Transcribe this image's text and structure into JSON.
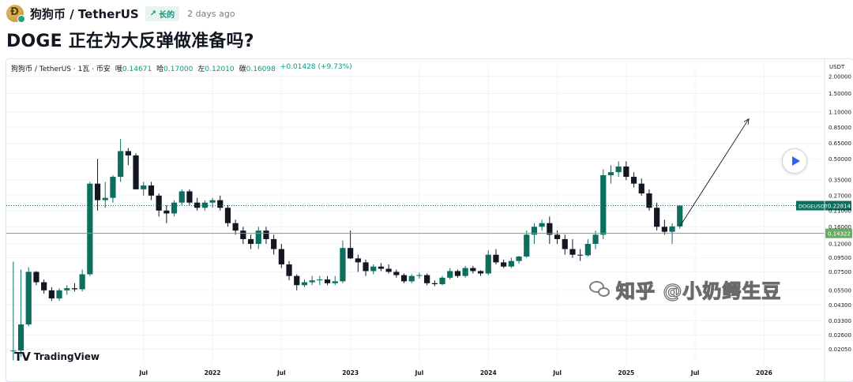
{
  "header": {
    "pair": "狗狗币 / TetherUS",
    "badge": "长的",
    "time_ago": "2 days ago",
    "title": "DOGE 正在为大反弹做准备吗?"
  },
  "legend": {
    "symbol": "狗狗币 / TetherUS · 1瓦 · 币安",
    "open_label": "哦",
    "open": "0.14671",
    "high_label": "哈",
    "high": "0.17000",
    "low_label": "左",
    "low": "0.12010",
    "close_label": "碳",
    "close": "0.16098",
    "change": "+0.01428 (+9.73%)"
  },
  "watermark": {
    "tv": "TradingView",
    "zhihu": "知乎 @小奶鳄生豆"
  },
  "colors": {
    "up": "#0b6e5f",
    "down": "#131722",
    "support": "#6aaa64",
    "price_tag": "#0b6e5f",
    "grid": "#f0f3fa"
  },
  "chart_data": {
    "type": "candlestick",
    "title": "",
    "xlabel": "",
    "ylabel": "USDT",
    "scale": "log",
    "ylim": [
      0.016,
      2.4
    ],
    "y_ticks": [
      "2.00000",
      "1.50000",
      "1.10000",
      "0.85000",
      "0.65000",
      "0.50000",
      "0.35000",
      "0.27000",
      "0.21000",
      "0.16000",
      "0.12000",
      "0.09500",
      "0.07500",
      "0.05500",
      "0.04300",
      "0.03300",
      "0.02600",
      "0.02050"
    ],
    "x_ticks": [
      "Jul",
      "2022",
      "Jul",
      "2023",
      "Jul",
      "2024",
      "Jul",
      "2025",
      "Jul",
      "2026"
    ],
    "current_price_label": "DOGEUSDT",
    "current_price": "0.22814",
    "support_level": "0.14322",
    "candles": [
      [
        0.02,
        0.089,
        0.017,
        0.02
      ],
      [
        0.02,
        0.078,
        0.018,
        0.031
      ],
      [
        0.031,
        0.081,
        0.03,
        0.075
      ],
      [
        0.075,
        0.076,
        0.06,
        0.063
      ],
      [
        0.063,
        0.066,
        0.052,
        0.055
      ],
      [
        0.055,
        0.058,
        0.046,
        0.048
      ],
      [
        0.048,
        0.057,
        0.046,
        0.055
      ],
      [
        0.055,
        0.06,
        0.051,
        0.057
      ],
      [
        0.057,
        0.062,
        0.054,
        0.056
      ],
      [
        0.056,
        0.078,
        0.054,
        0.072
      ],
      [
        0.072,
        0.34,
        0.07,
        0.33
      ],
      [
        0.33,
        0.5,
        0.21,
        0.25
      ],
      [
        0.25,
        0.34,
        0.22,
        0.26
      ],
      [
        0.26,
        0.38,
        0.24,
        0.37
      ],
      [
        0.37,
        0.7,
        0.34,
        0.57
      ],
      [
        0.57,
        0.6,
        0.45,
        0.53
      ],
      [
        0.53,
        0.55,
        0.3,
        0.3
      ],
      [
        0.3,
        0.34,
        0.27,
        0.32
      ],
      [
        0.32,
        0.34,
        0.25,
        0.27
      ],
      [
        0.27,
        0.28,
        0.19,
        0.21
      ],
      [
        0.21,
        0.23,
        0.17,
        0.2
      ],
      [
        0.2,
        0.25,
        0.19,
        0.24
      ],
      [
        0.24,
        0.3,
        0.23,
        0.29
      ],
      [
        0.29,
        0.3,
        0.23,
        0.24
      ],
      [
        0.24,
        0.26,
        0.21,
        0.22
      ],
      [
        0.22,
        0.25,
        0.21,
        0.24
      ],
      [
        0.24,
        0.26,
        0.22,
        0.25
      ],
      [
        0.25,
        0.27,
        0.21,
        0.22
      ],
      [
        0.22,
        0.23,
        0.16,
        0.17
      ],
      [
        0.17,
        0.18,
        0.14,
        0.15
      ],
      [
        0.15,
        0.16,
        0.12,
        0.13
      ],
      [
        0.13,
        0.14,
        0.11,
        0.12
      ],
      [
        0.12,
        0.16,
        0.11,
        0.15
      ],
      [
        0.15,
        0.16,
        0.12,
        0.13
      ],
      [
        0.13,
        0.14,
        0.1,
        0.11
      ],
      [
        0.11,
        0.12,
        0.08,
        0.085
      ],
      [
        0.085,
        0.09,
        0.065,
        0.07
      ],
      [
        0.07,
        0.072,
        0.055,
        0.06
      ],
      [
        0.06,
        0.066,
        0.058,
        0.063
      ],
      [
        0.063,
        0.07,
        0.06,
        0.065
      ],
      [
        0.065,
        0.07,
        0.06,
        0.066
      ],
      [
        0.066,
        0.07,
        0.06,
        0.062
      ],
      [
        0.062,
        0.07,
        0.06,
        0.064
      ],
      [
        0.064,
        0.127,
        0.062,
        0.112
      ],
      [
        0.112,
        0.15,
        0.093,
        0.094
      ],
      [
        0.094,
        0.1,
        0.075,
        0.088
      ],
      [
        0.088,
        0.092,
        0.07,
        0.076
      ],
      [
        0.076,
        0.085,
        0.072,
        0.082
      ],
      [
        0.082,
        0.087,
        0.076,
        0.079
      ],
      [
        0.079,
        0.085,
        0.073,
        0.075
      ],
      [
        0.075,
        0.078,
        0.068,
        0.071
      ],
      [
        0.071,
        0.073,
        0.062,
        0.064
      ],
      [
        0.064,
        0.072,
        0.062,
        0.07
      ],
      [
        0.07,
        0.074,
        0.067,
        0.071
      ],
      [
        0.071,
        0.073,
        0.06,
        0.062
      ],
      [
        0.062,
        0.065,
        0.059,
        0.061
      ],
      [
        0.061,
        0.07,
        0.06,
        0.068
      ],
      [
        0.068,
        0.08,
        0.066,
        0.076
      ],
      [
        0.076,
        0.078,
        0.068,
        0.07
      ],
      [
        0.07,
        0.083,
        0.068,
        0.08
      ],
      [
        0.08,
        0.083,
        0.073,
        0.076
      ],
      [
        0.076,
        0.077,
        0.07,
        0.073
      ],
      [
        0.073,
        0.108,
        0.071,
        0.1
      ],
      [
        0.1,
        0.11,
        0.085,
        0.088
      ],
      [
        0.088,
        0.092,
        0.08,
        0.082
      ],
      [
        0.082,
        0.095,
        0.08,
        0.09
      ],
      [
        0.09,
        0.098,
        0.086,
        0.097
      ],
      [
        0.097,
        0.15,
        0.095,
        0.14
      ],
      [
        0.14,
        0.17,
        0.12,
        0.16
      ],
      [
        0.16,
        0.18,
        0.15,
        0.17
      ],
      [
        0.17,
        0.19,
        0.12,
        0.14
      ],
      [
        0.14,
        0.15,
        0.12,
        0.13
      ],
      [
        0.13,
        0.14,
        0.1,
        0.11
      ],
      [
        0.11,
        0.13,
        0.095,
        0.1
      ],
      [
        0.1,
        0.11,
        0.09,
        0.099
      ],
      [
        0.099,
        0.13,
        0.097,
        0.12
      ],
      [
        0.12,
        0.15,
        0.11,
        0.14
      ],
      [
        0.14,
        0.42,
        0.13,
        0.38
      ],
      [
        0.38,
        0.45,
        0.33,
        0.4
      ],
      [
        0.4,
        0.48,
        0.37,
        0.44
      ],
      [
        0.44,
        0.48,
        0.35,
        0.37
      ],
      [
        0.37,
        0.4,
        0.31,
        0.33
      ],
      [
        0.33,
        0.36,
        0.27,
        0.28
      ],
      [
        0.28,
        0.3,
        0.21,
        0.22
      ],
      [
        0.22,
        0.24,
        0.15,
        0.16
      ],
      [
        0.16,
        0.18,
        0.14,
        0.147
      ],
      [
        0.147,
        0.17,
        0.12,
        0.161
      ],
      [
        0.161,
        0.23,
        0.155,
        0.228
      ]
    ],
    "annotations": [
      {
        "type": "arrow",
        "from": [
          87,
          0.161
        ],
        "to": [
          96,
          0.98
        ]
      },
      {
        "type": "hline",
        "value": 0.14322
      },
      {
        "type": "hline",
        "value": 0.22814,
        "style": "dotted"
      }
    ]
  }
}
